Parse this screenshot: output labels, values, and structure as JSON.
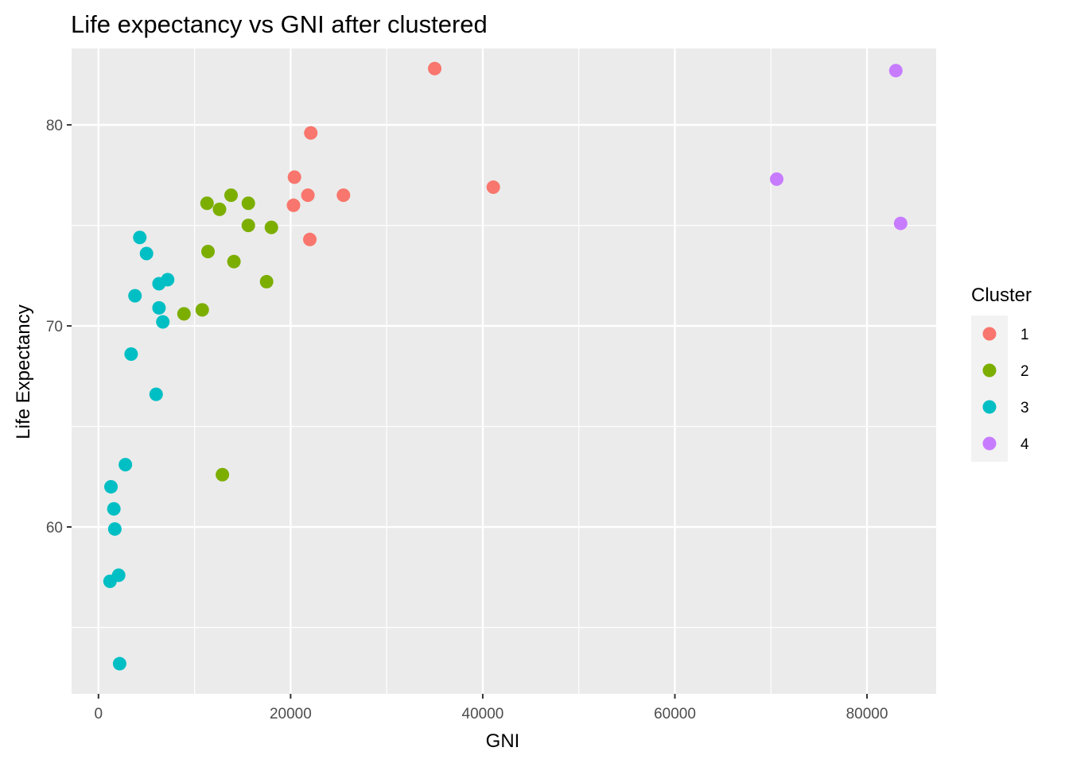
{
  "chart_data": {
    "type": "scatter",
    "title": "Life expectancy vs GNI after clustered",
    "xlabel": "GNI",
    "ylabel": "Life Expectancy",
    "xlim": [
      -2800,
      87200
    ],
    "ylim": [
      51.7,
      83.8
    ],
    "x_ticks": [
      0,
      20000,
      40000,
      60000,
      80000
    ],
    "x_tick_labels": [
      "0",
      "20000",
      "40000",
      "60000",
      "80000"
    ],
    "y_ticks": [
      60,
      70,
      80
    ],
    "y_tick_labels": [
      "60",
      "70",
      "80"
    ],
    "grid": true,
    "panel_background": "#ebebeb",
    "legend": {
      "title": "Cluster",
      "position": "right",
      "entries": [
        {
          "label": "1",
          "color": "#F8766D"
        },
        {
          "label": "2",
          "color": "#7CAE00"
        },
        {
          "label": "3",
          "color": "#00BFC4"
        },
        {
          "label": "4",
          "color": "#C77CFF"
        }
      ]
    },
    "series": [
      {
        "name": "1",
        "color": "#F8766D",
        "points": [
          [
            35000,
            82.8
          ],
          [
            22100,
            79.6
          ],
          [
            20400,
            77.4
          ],
          [
            41100,
            76.9
          ],
          [
            21800,
            76.5
          ],
          [
            25500,
            76.5
          ],
          [
            20300,
            76.0
          ],
          [
            22000,
            74.3
          ]
        ]
      },
      {
        "name": "2",
        "color": "#7CAE00",
        "points": [
          [
            13800,
            76.5
          ],
          [
            11300,
            76.1
          ],
          [
            15600,
            76.1
          ],
          [
            12600,
            75.8
          ],
          [
            15600,
            75.0
          ],
          [
            18000,
            74.9
          ],
          [
            11400,
            73.7
          ],
          [
            14100,
            73.2
          ],
          [
            17500,
            72.2
          ],
          [
            10800,
            70.8
          ],
          [
            8900,
            70.6
          ],
          [
            12900,
            62.6
          ]
        ]
      },
      {
        "name": "3",
        "color": "#00BFC4",
        "points": [
          [
            4300,
            74.4
          ],
          [
            5000,
            73.6
          ],
          [
            7200,
            72.3
          ],
          [
            6300,
            72.1
          ],
          [
            3800,
            71.5
          ],
          [
            6300,
            70.9
          ],
          [
            6700,
            70.2
          ],
          [
            3400,
            68.6
          ],
          [
            6000,
            66.6
          ],
          [
            2800,
            63.1
          ],
          [
            1300,
            62.0
          ],
          [
            1600,
            60.9
          ],
          [
            1700,
            59.9
          ],
          [
            2100,
            57.6
          ],
          [
            1200,
            57.3
          ],
          [
            2200,
            53.2
          ]
        ]
      },
      {
        "name": "4",
        "color": "#C77CFF",
        "points": [
          [
            83000,
            82.7
          ],
          [
            70600,
            77.3
          ],
          [
            83500,
            75.1
          ]
        ]
      }
    ]
  }
}
